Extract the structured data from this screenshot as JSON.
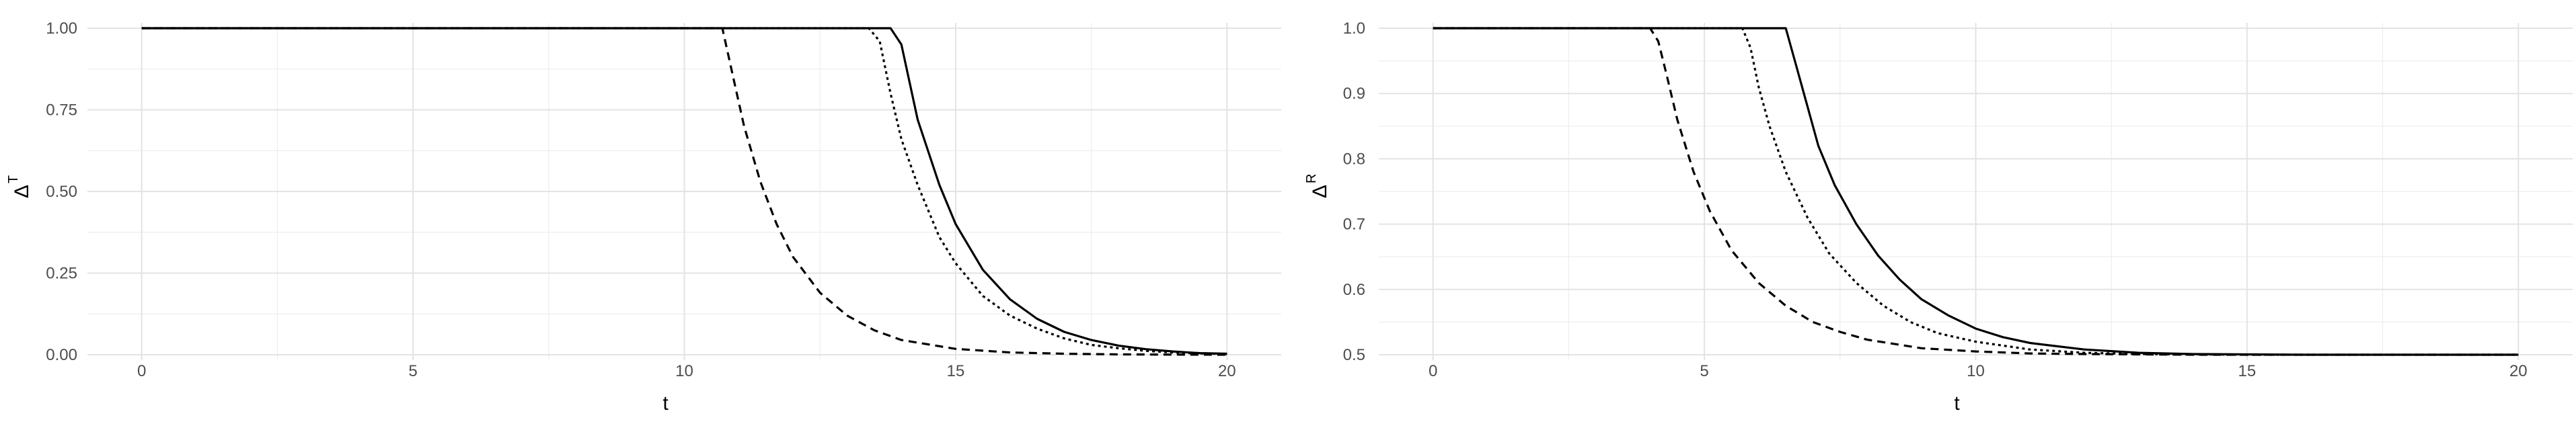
{
  "chart_data": [
    {
      "type": "line",
      "xlabel": "t",
      "ylabel": "Δ",
      "ylabel_sup": "T",
      "xlim": [
        -1,
        21
      ],
      "ylim": [
        0,
        1
      ],
      "xticks": [
        0,
        5,
        10,
        15,
        20
      ],
      "xtick_labels": [
        "0",
        "5",
        "10",
        "15",
        "20"
      ],
      "yticks": [
        0,
        0.25,
        0.5,
        0.75,
        1
      ],
      "ytick_labels": [
        "0.00",
        "0.25",
        "0.50",
        "0.75",
        "1.00"
      ],
      "grid": true,
      "legend": "none",
      "series": [
        {
          "style": "solid",
          "x": [
            0,
            13.8,
            14.0,
            14.3,
            14.7,
            15.0,
            15.5,
            16.0,
            16.5,
            17.0,
            17.5,
            18.0,
            18.5,
            19.0,
            19.5,
            20.0
          ],
          "y": [
            1.0,
            1.0,
            0.95,
            0.72,
            0.52,
            0.4,
            0.26,
            0.17,
            0.11,
            0.07,
            0.045,
            0.028,
            0.017,
            0.01,
            0.005,
            0.003
          ]
        },
        {
          "style": "dotted",
          "x": [
            0,
            13.4,
            13.6,
            13.8,
            14.0,
            14.3,
            14.7,
            15.0,
            15.5,
            16.0,
            16.5,
            17.0,
            17.5,
            18.0,
            18.5,
            19.0,
            19.5,
            20.0
          ],
          "y": [
            1.0,
            1.0,
            0.96,
            0.8,
            0.66,
            0.52,
            0.36,
            0.28,
            0.18,
            0.12,
            0.08,
            0.05,
            0.03,
            0.02,
            0.012,
            0.007,
            0.004,
            0.002
          ]
        },
        {
          "style": "dashed",
          "x": [
            0,
            10.7,
            10.9,
            11.1,
            11.4,
            11.7,
            12.0,
            12.5,
            13.0,
            13.5,
            14.0,
            15.0,
            16.0,
            17.0,
            18.0,
            19.0,
            20.0
          ],
          "y": [
            1.0,
            1.0,
            0.85,
            0.7,
            0.53,
            0.4,
            0.3,
            0.19,
            0.12,
            0.075,
            0.045,
            0.018,
            0.007,
            0.003,
            0.001,
            0.0005,
            0.0
          ]
        }
      ]
    },
    {
      "type": "line",
      "xlabel": "t",
      "ylabel": "Δ",
      "ylabel_sup": "R",
      "xlim": [
        -1,
        21
      ],
      "ylim": [
        0.5,
        1
      ],
      "xticks": [
        0,
        5,
        10,
        15,
        20
      ],
      "xtick_labels": [
        "0",
        "5",
        "10",
        "15",
        "20"
      ],
      "yticks": [
        0.5,
        0.6,
        0.7,
        0.8,
        0.9,
        1.0
      ],
      "ytick_labels": [
        "0.5",
        "0.6",
        "0.7",
        "0.8",
        "0.9",
        "1.0"
      ],
      "grid": true,
      "legend": "none",
      "series": [
        {
          "style": "solid",
          "x": [
            0,
            6.5,
            6.7,
            6.9,
            7.1,
            7.4,
            7.8,
            8.2,
            8.6,
            9.0,
            9.5,
            10.0,
            10.5,
            11.0,
            12.0,
            13.0,
            14.0,
            16.0,
            20.0
          ],
          "y": [
            1.0,
            1.0,
            0.94,
            0.88,
            0.82,
            0.76,
            0.7,
            0.652,
            0.615,
            0.585,
            0.56,
            0.54,
            0.527,
            0.518,
            0.508,
            0.503,
            0.501,
            0.5,
            0.5
          ]
        },
        {
          "style": "dotted",
          "x": [
            0,
            5.7,
            5.85,
            6.0,
            6.2,
            6.5,
            6.9,
            7.3,
            7.8,
            8.3,
            8.8,
            9.3,
            10.0,
            11.0,
            12.0,
            13.0,
            15.0,
            20.0
          ],
          "y": [
            1.0,
            1.0,
            0.97,
            0.91,
            0.85,
            0.78,
            0.71,
            0.655,
            0.61,
            0.575,
            0.55,
            0.533,
            0.52,
            0.508,
            0.503,
            0.501,
            0.5,
            0.5
          ]
        },
        {
          "style": "dashed",
          "x": [
            0,
            4.0,
            4.15,
            4.3,
            4.5,
            4.8,
            5.1,
            5.5,
            6.0,
            6.5,
            7.0,
            7.5,
            8.0,
            9.0,
            10.0,
            11.0,
            12.0,
            14.0,
            20.0
          ],
          "y": [
            1.0,
            1.0,
            0.98,
            0.93,
            0.86,
            0.78,
            0.72,
            0.66,
            0.61,
            0.575,
            0.55,
            0.535,
            0.523,
            0.51,
            0.505,
            0.502,
            0.501,
            0.5,
            0.5
          ]
        }
      ]
    }
  ]
}
